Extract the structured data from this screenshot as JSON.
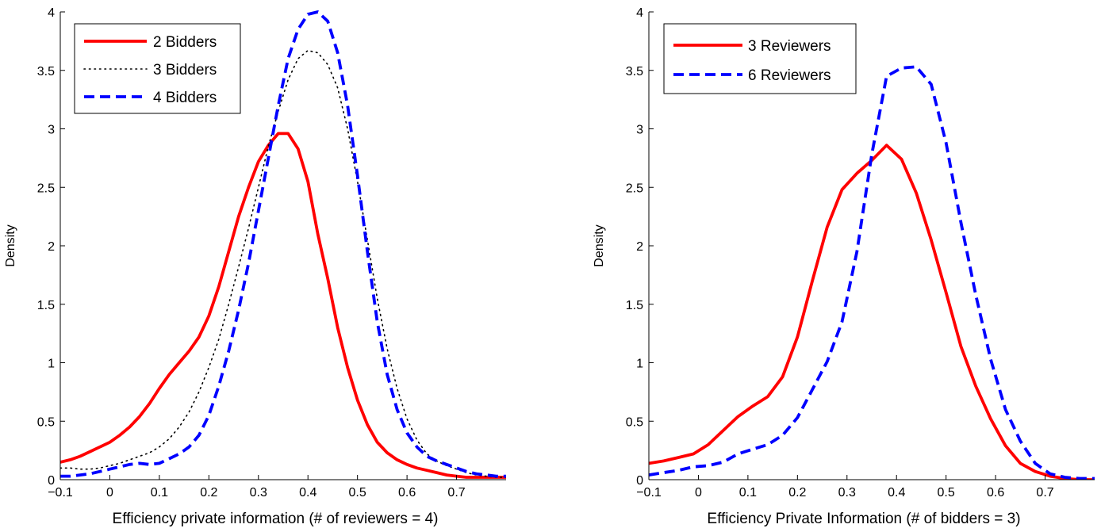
{
  "chart_data": [
    {
      "type": "line",
      "xlabel": "Efficiency private information (# of reviewers = 4)",
      "ylabel": "Density",
      "xlim": [
        -0.1,
        0.8
      ],
      "ylim": [
        0,
        4
      ],
      "xticks": [
        -0.1,
        0,
        0.1,
        0.2,
        0.3,
        0.4,
        0.5,
        0.6,
        0.7
      ],
      "xtick_labels": [
        "−0.1",
        "0",
        "0.1",
        "0.2",
        "0.3",
        "0.4",
        "0.5",
        "0.6",
        "0.7"
      ],
      "yticks": [
        0,
        0.5,
        1,
        1.5,
        2,
        2.5,
        3,
        3.5,
        4
      ],
      "ytick_labels": [
        "0",
        "0.5",
        "1",
        "1.5",
        "2",
        "2.5",
        "3",
        "3.5",
        "4"
      ],
      "grid": false,
      "legend_position": "top-left",
      "series": [
        {
          "name": "2 Bidders",
          "color": "#ff0000",
          "style": "solid",
          "x": [
            -0.1,
            -0.08,
            -0.06,
            -0.04,
            -0.02,
            0.0,
            0.02,
            0.04,
            0.06,
            0.08,
            0.1,
            0.12,
            0.14,
            0.16,
            0.18,
            0.2,
            0.22,
            0.24,
            0.26,
            0.28,
            0.3,
            0.32,
            0.34,
            0.36,
            0.38,
            0.4,
            0.42,
            0.44,
            0.46,
            0.48,
            0.5,
            0.52,
            0.54,
            0.56,
            0.58,
            0.6,
            0.62,
            0.64,
            0.66,
            0.68,
            0.7,
            0.72,
            0.74,
            0.76,
            0.78,
            0.8
          ],
          "y": [
            0.15,
            0.17,
            0.2,
            0.24,
            0.28,
            0.32,
            0.38,
            0.45,
            0.54,
            0.65,
            0.78,
            0.9,
            1.0,
            1.1,
            1.22,
            1.4,
            1.65,
            1.95,
            2.25,
            2.5,
            2.72,
            2.86,
            2.96,
            2.96,
            2.83,
            2.55,
            2.1,
            1.72,
            1.3,
            0.96,
            0.68,
            0.47,
            0.32,
            0.23,
            0.17,
            0.13,
            0.1,
            0.08,
            0.06,
            0.04,
            0.03,
            0.02,
            0.02,
            0.02,
            0.02,
            0.02
          ]
        },
        {
          "name": "3 Bidders",
          "color": "#000000",
          "style": "dotted",
          "x": [
            -0.1,
            -0.08,
            -0.06,
            -0.04,
            -0.02,
            0.0,
            0.02,
            0.04,
            0.06,
            0.08,
            0.1,
            0.12,
            0.14,
            0.16,
            0.18,
            0.2,
            0.22,
            0.24,
            0.26,
            0.28,
            0.3,
            0.32,
            0.34,
            0.36,
            0.38,
            0.4,
            0.42,
            0.44,
            0.46,
            0.48,
            0.5,
            0.52,
            0.54,
            0.56,
            0.58,
            0.6,
            0.62,
            0.64,
            0.66,
            0.68,
            0.7,
            0.72,
            0.74,
            0.76,
            0.78,
            0.8
          ],
          "y": [
            0.1,
            0.1,
            0.09,
            0.09,
            0.1,
            0.12,
            0.14,
            0.17,
            0.2,
            0.23,
            0.28,
            0.35,
            0.45,
            0.58,
            0.75,
            0.96,
            1.2,
            1.5,
            1.82,
            2.15,
            2.5,
            2.85,
            3.15,
            3.42,
            3.6,
            3.67,
            3.65,
            3.55,
            3.35,
            3.0,
            2.55,
            2.05,
            1.55,
            1.12,
            0.78,
            0.52,
            0.34,
            0.22,
            0.16,
            0.12,
            0.09,
            0.06,
            0.04,
            0.03,
            0.02,
            0.02
          ]
        },
        {
          "name": "4 Bidders",
          "color": "#0000ff",
          "style": "dashed",
          "x": [
            -0.1,
            -0.08,
            -0.06,
            -0.04,
            -0.02,
            0.0,
            0.02,
            0.04,
            0.06,
            0.08,
            0.1,
            0.12,
            0.14,
            0.16,
            0.18,
            0.2,
            0.22,
            0.24,
            0.26,
            0.28,
            0.3,
            0.32,
            0.34,
            0.36,
            0.38,
            0.4,
            0.42,
            0.44,
            0.46,
            0.48,
            0.5,
            0.52,
            0.54,
            0.56,
            0.58,
            0.6,
            0.62,
            0.64,
            0.66,
            0.68,
            0.7,
            0.72,
            0.74,
            0.76,
            0.78,
            0.8
          ],
          "y": [
            0.03,
            0.03,
            0.04,
            0.05,
            0.07,
            0.09,
            0.11,
            0.13,
            0.14,
            0.13,
            0.14,
            0.18,
            0.22,
            0.28,
            0.38,
            0.55,
            0.8,
            1.1,
            1.45,
            1.85,
            2.3,
            2.75,
            3.2,
            3.6,
            3.85,
            3.98,
            4.0,
            3.92,
            3.65,
            3.2,
            2.6,
            1.95,
            1.35,
            0.9,
            0.6,
            0.4,
            0.28,
            0.2,
            0.16,
            0.13,
            0.1,
            0.07,
            0.05,
            0.04,
            0.03,
            0.03
          ]
        }
      ]
    },
    {
      "type": "line",
      "xlabel": "Efficiency Private Information (# of bidders = 3)",
      "ylabel": "Density",
      "xlim": [
        -0.1,
        0.8
      ],
      "ylim": [
        0,
        4
      ],
      "xticks": [
        -0.1,
        0,
        0.1,
        0.2,
        0.3,
        0.4,
        0.5,
        0.6,
        0.7
      ],
      "xtick_labels": [
        "−0.1",
        "0",
        "0.1",
        "0.2",
        "0.3",
        "0.4",
        "0.5",
        "0.6",
        "0.7"
      ],
      "yticks": [
        0,
        0.5,
        1,
        1.5,
        2,
        2.5,
        3,
        3.5,
        4
      ],
      "ytick_labels": [
        "0",
        "0.5",
        "1",
        "1.5",
        "2",
        "2.5",
        "3",
        "3.5",
        "4"
      ],
      "grid": false,
      "legend_position": "top-left",
      "series": [
        {
          "name": "3 Reviewers",
          "color": "#ff0000",
          "style": "solid",
          "x": [
            -0.1,
            -0.07,
            -0.04,
            -0.01,
            0.02,
            0.05,
            0.08,
            0.11,
            0.14,
            0.17,
            0.2,
            0.23,
            0.26,
            0.29,
            0.32,
            0.35,
            0.38,
            0.41,
            0.44,
            0.47,
            0.5,
            0.53,
            0.56,
            0.59,
            0.62,
            0.65,
            0.68,
            0.71,
            0.74,
            0.77,
            0.8
          ],
          "y": [
            0.14,
            0.16,
            0.19,
            0.22,
            0.3,
            0.42,
            0.54,
            0.63,
            0.71,
            0.88,
            1.22,
            1.7,
            2.16,
            2.48,
            2.62,
            2.73,
            2.86,
            2.74,
            2.45,
            2.05,
            1.6,
            1.14,
            0.8,
            0.52,
            0.29,
            0.14,
            0.07,
            0.03,
            0.01,
            0.0,
            0.0
          ]
        },
        {
          "name": "6 Reviewers",
          "color": "#0000ff",
          "style": "dashed",
          "x": [
            -0.1,
            -0.07,
            -0.04,
            -0.01,
            0.02,
            0.05,
            0.08,
            0.11,
            0.14,
            0.17,
            0.2,
            0.23,
            0.26,
            0.29,
            0.32,
            0.35,
            0.38,
            0.41,
            0.44,
            0.47,
            0.5,
            0.53,
            0.56,
            0.59,
            0.62,
            0.65,
            0.68,
            0.71,
            0.74,
            0.77,
            0.8
          ],
          "y": [
            0.04,
            0.06,
            0.08,
            0.11,
            0.12,
            0.15,
            0.22,
            0.26,
            0.3,
            0.38,
            0.53,
            0.77,
            1.01,
            1.35,
            1.95,
            2.78,
            3.45,
            3.52,
            3.53,
            3.38,
            2.88,
            2.2,
            1.58,
            1.03,
            0.6,
            0.33,
            0.14,
            0.05,
            0.02,
            0.01,
            0.01
          ]
        }
      ]
    }
  ]
}
